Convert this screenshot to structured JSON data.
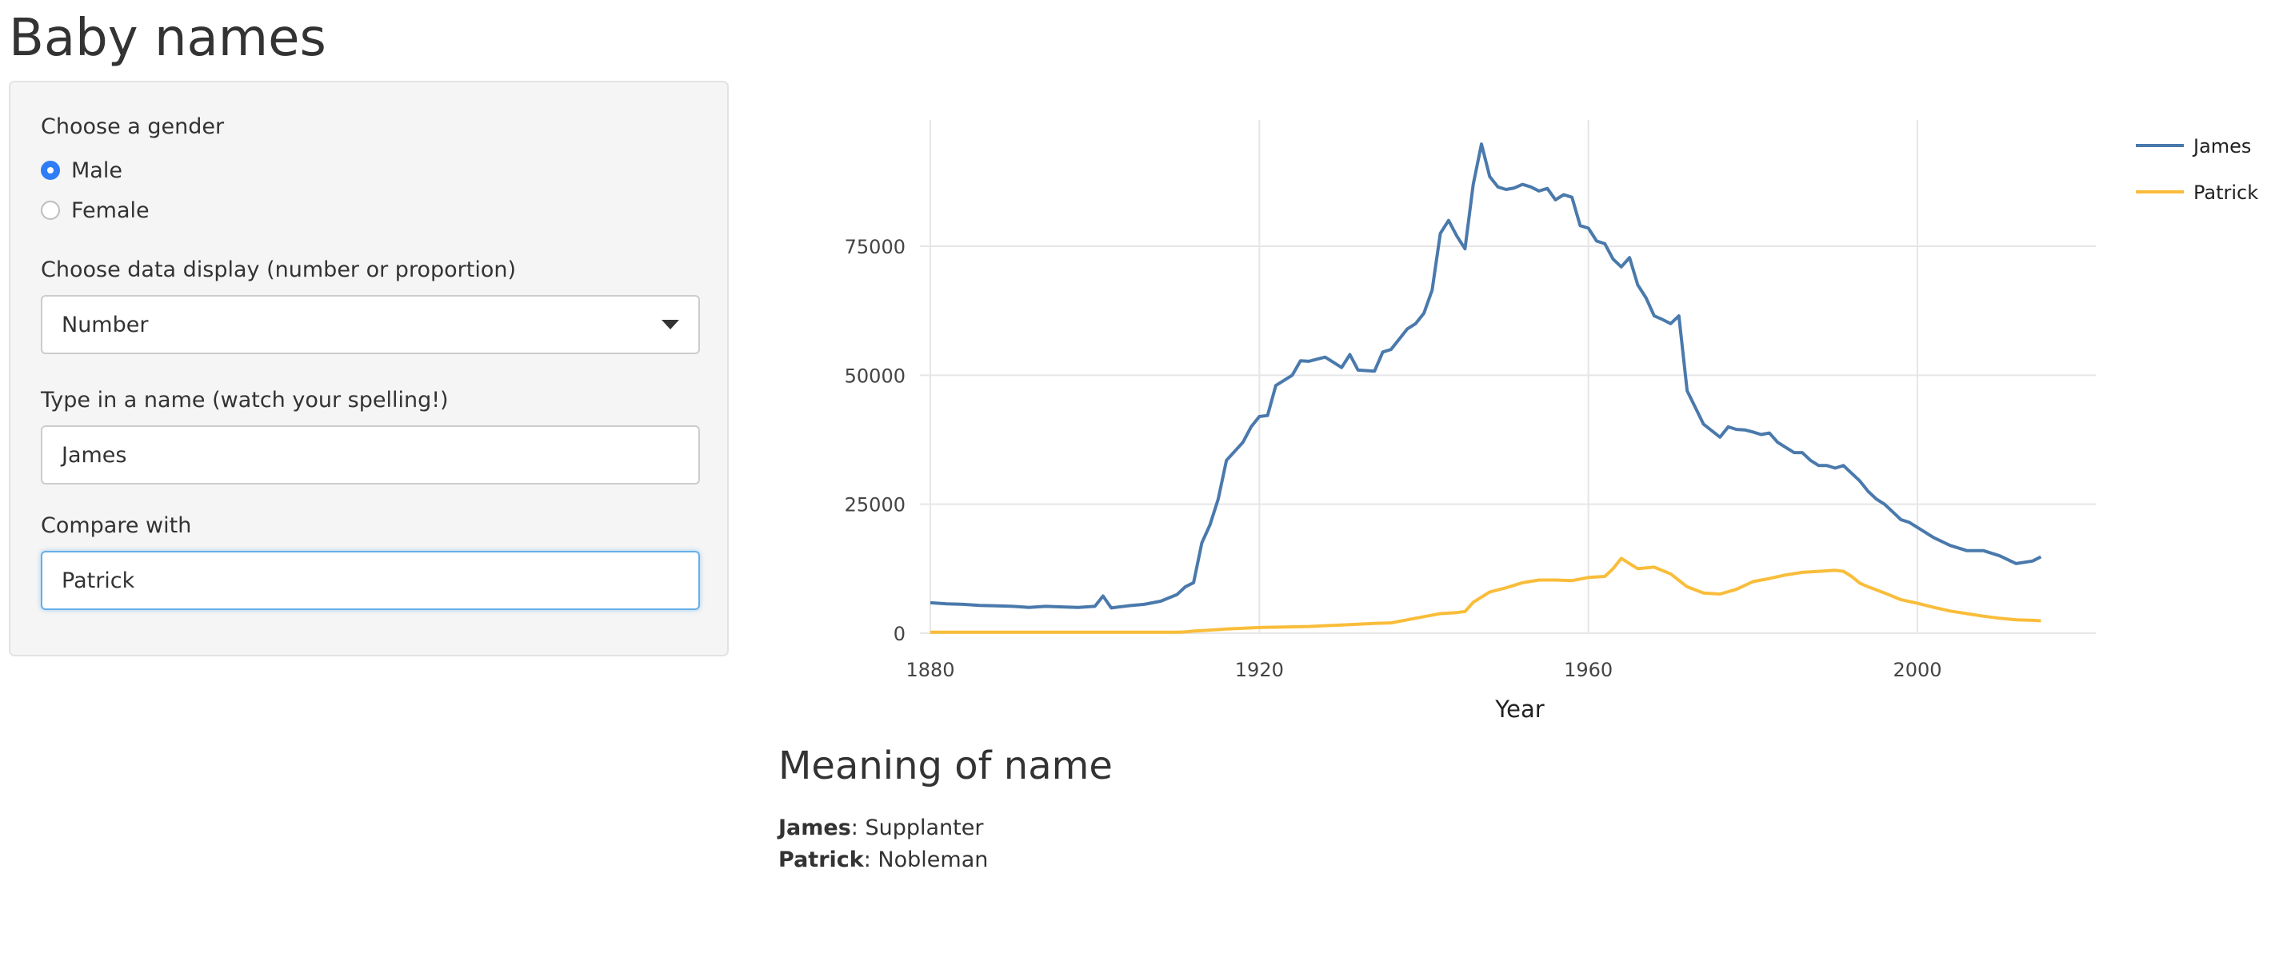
{
  "app": {
    "title": "Baby names"
  },
  "sidebar": {
    "gender": {
      "label": "Choose a gender",
      "options": [
        "Male",
        "Female"
      ],
      "selected": "Male"
    },
    "display": {
      "label": "Choose data display (number or proportion)",
      "value": "Number"
    },
    "name": {
      "label": "Type in a name (watch your spelling!)",
      "value": "James"
    },
    "compare": {
      "label": "Compare with",
      "value": "Patrick"
    }
  },
  "colors": {
    "james": "#4a79ac",
    "patrick": "#f9bd3a",
    "accent": "#2f7df6"
  },
  "chart_data": {
    "type": "line",
    "xlabel": "Year",
    "ylabel": "",
    "xlim": [
      1880,
      2015
    ],
    "ylim": [
      0,
      100000
    ],
    "xticks": [
      1880,
      1920,
      1960,
      2000
    ],
    "yticks": [
      0,
      25000,
      50000,
      75000
    ],
    "grid": true,
    "legend": "top-right",
    "series": [
      {
        "name": "James",
        "x": [
          1880,
          1882,
          1884,
          1886,
          1888,
          1890,
          1892,
          1894,
          1896,
          1898,
          1900,
          1901,
          1902,
          1904,
          1906,
          1908,
          1910,
          1911,
          1912,
          1913,
          1914,
          1915,
          1916,
          1918,
          1919,
          1920,
          1921,
          1922,
          1924,
          1925,
          1926,
          1928,
          1930,
          1931,
          1932,
          1934,
          1935,
          1936,
          1938,
          1939,
          1940,
          1941,
          1942,
          1943,
          1944,
          1945,
          1946,
          1947,
          1948,
          1949,
          1950,
          1951,
          1952,
          1953,
          1954,
          1955,
          1956,
          1957,
          1958,
          1959,
          1960,
          1961,
          1962,
          1963,
          1964,
          1965,
          1966,
          1967,
          1968,
          1969,
          1970,
          1971,
          1972,
          1974,
          1976,
          1977,
          1978,
          1979,
          1980,
          1981,
          1982,
          1983,
          1984,
          1985,
          1986,
          1987,
          1988,
          1989,
          1990,
          1991,
          1992,
          1993,
          1994,
          1995,
          1996,
          1997,
          1998,
          1999,
          2000,
          2002,
          2004,
          2006,
          2008,
          2010,
          2012,
          2014,
          2015
        ],
        "y": [
          5900,
          5700,
          5600,
          5400,
          5300,
          5200,
          5000,
          5200,
          5100,
          5000,
          5200,
          7200,
          4900,
          5300,
          5600,
          6200,
          7500,
          9000,
          9800,
          17500,
          21000,
          26000,
          33500,
          37000,
          40000,
          42000,
          42200,
          48000,
          50000,
          52800,
          52700,
          53500,
          51500,
          54000,
          51000,
          50800,
          54500,
          55000,
          59000,
          60000,
          62000,
          66500,
          77500,
          80000,
          77000,
          74500,
          87000,
          94800,
          88500,
          86500,
          86000,
          86300,
          87000,
          86500,
          85700,
          86200,
          84000,
          85000,
          84500,
          79000,
          78500,
          76000,
          75500,
          72500,
          71000,
          72800,
          67500,
          65000,
          61500,
          60800,
          60000,
          61500,
          47000,
          40500,
          38000,
          40000,
          39500,
          39400,
          39000,
          38500,
          38800,
          37000,
          36000,
          35000,
          35000,
          33500,
          32500,
          32500,
          32000,
          32500,
          31000,
          29500,
          27500,
          26000,
          25000,
          23500,
          22000,
          21500,
          20500,
          18500,
          17000,
          16000,
          16000,
          15000,
          13500,
          14000,
          14800
        ]
      },
      {
        "name": "Patrick",
        "x": [
          1880,
          1890,
          1900,
          1910,
          1911,
          1912,
          1916,
          1920,
          1926,
          1930,
          1934,
          1936,
          1938,
          1940,
          1942,
          1944,
          1945,
          1946,
          1948,
          1950,
          1952,
          1954,
          1956,
          1958,
          1960,
          1962,
          1963,
          1964,
          1965,
          1966,
          1968,
          1970,
          1972,
          1974,
          1976,
          1978,
          1980,
          1982,
          1984,
          1986,
          1988,
          1990,
          1991,
          1992,
          1993,
          1994,
          1996,
          1998,
          2000,
          2002,
          2004,
          2006,
          2008,
          2010,
          2012,
          2014,
          2015
        ],
        "y": [
          200,
          200,
          200,
          200,
          250,
          400,
          800,
          1100,
          1300,
          1600,
          1900,
          2000,
          2600,
          3200,
          3800,
          4000,
          4200,
          6000,
          8000,
          8800,
          9800,
          10300,
          10300,
          10200,
          10800,
          11000,
          12500,
          14500,
          13500,
          12500,
          12800,
          11500,
          9000,
          7800,
          7600,
          8500,
          10000,
          10600,
          11300,
          11800,
          12000,
          12200,
          12000,
          11000,
          9700,
          9000,
          7800,
          6500,
          5800,
          5000,
          4300,
          3800,
          3300,
          2900,
          2600,
          2500,
          2400
        ]
      }
    ]
  },
  "meaning": {
    "title": "Meaning of name",
    "entries": [
      {
        "name": "James",
        "meaning": "Supplanter"
      },
      {
        "name": "Patrick",
        "meaning": "Nobleman"
      }
    ]
  }
}
